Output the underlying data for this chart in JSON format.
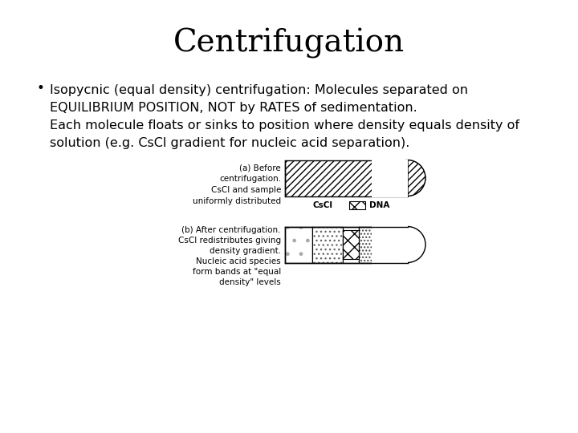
{
  "title": "Centrifugation",
  "title_fontsize": 28,
  "background_color": "#ffffff",
  "bullet_lines": [
    "Isopycnic (equal density) centrifugation: Molecules separated on",
    "EQUILIBRIUM POSITION, NOT by RATES of sedimentation.",
    "Each molecule floats or sinks to position where density equals density of",
    "solution (e.g. CsCl gradient for nucleic acid separation)."
  ],
  "text_fontsize": 11.5,
  "label_a_lines": [
    "(a) Before",
    "centrifugation.",
    "CsCl and sample",
    "uniformly distributed"
  ],
  "label_b_lines": [
    "(b) After centrifugation.",
    "CsCl redistributes giving",
    "density gradient.",
    "Nucleic acid species",
    "form bands at \"equal",
    "density\" levels"
  ],
  "legend_label_cscl": "CsCl",
  "legend_label_dna": "DNA"
}
